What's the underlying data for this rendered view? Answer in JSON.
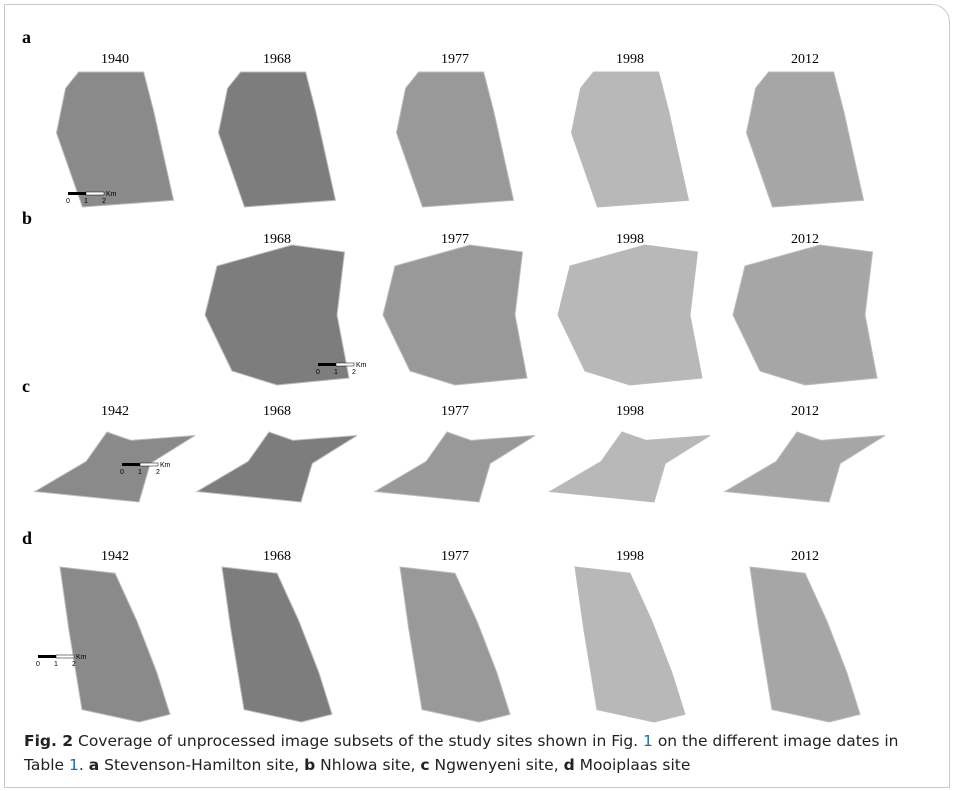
{
  "panels": [
    {
      "label": "a",
      "images": [
        {
          "year": "1940"
        },
        {
          "year": "1968"
        },
        {
          "year": "1977"
        },
        {
          "year": "1998"
        },
        {
          "year": "2012"
        }
      ],
      "scale_bar": {
        "ticks": [
          "0",
          "1",
          "2"
        ],
        "unit": "Km"
      }
    },
    {
      "label": "b",
      "images": [
        {
          "year": "1968"
        },
        {
          "year": "1977"
        },
        {
          "year": "1998"
        },
        {
          "year": "2012"
        }
      ],
      "scale_bar": {
        "ticks": [
          "0",
          "1",
          "2"
        ],
        "unit": "Km"
      }
    },
    {
      "label": "c",
      "images": [
        {
          "year": "1942"
        },
        {
          "year": "1968"
        },
        {
          "year": "1977"
        },
        {
          "year": "1998"
        },
        {
          "year": "2012"
        }
      ],
      "scale_bar": {
        "ticks": [
          "0",
          "1",
          "2"
        ],
        "unit": "Km"
      }
    },
    {
      "label": "d",
      "images": [
        {
          "year": "1942"
        },
        {
          "year": "1968"
        },
        {
          "year": "1977"
        },
        {
          "year": "1998"
        },
        {
          "year": "2012"
        }
      ],
      "scale_bar": {
        "ticks": [
          "0",
          "1",
          "2"
        ],
        "unit": "Km"
      }
    }
  ],
  "caption": {
    "segments": [
      {
        "text": "Fig. 2",
        "style": "bold"
      },
      {
        "text": "  Coverage of unprocessed image subsets of the study sites shown in Fig. ",
        "style": "plain"
      },
      {
        "text": "1",
        "style": "link"
      },
      {
        "text": " on the different image dates in Table ",
        "style": "plain"
      },
      {
        "text": "1",
        "style": "link"
      },
      {
        "text": ". ",
        "style": "plain"
      },
      {
        "text": "a",
        "style": "bold"
      },
      {
        "text": " Stevenson-Hamilton site, ",
        "style": "plain"
      },
      {
        "text": "b",
        "style": "bold"
      },
      {
        "text": " Nhlowa site, ",
        "style": "plain"
      },
      {
        "text": "c",
        "style": "bold"
      },
      {
        "text": " Ngwenyeni site, ",
        "style": "plain"
      },
      {
        "text": "d",
        "style": "bold"
      },
      {
        "text": " Mooiplaas site",
        "style": "plain"
      }
    ]
  }
}
